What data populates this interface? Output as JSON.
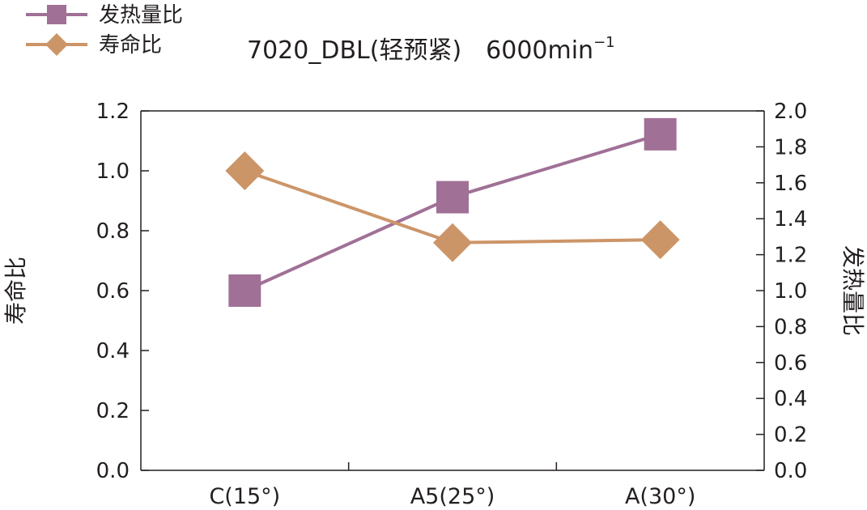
{
  "chart_data": {
    "type": "line",
    "title": "7020_DBL(轻预紧)　6000min",
    "title_superscript": "−1",
    "categories": [
      "C(15°)",
      "A5(25°)",
      "A(30°)"
    ],
    "y_left": {
      "label": "寿命比",
      "ylim": [
        0.0,
        1.2
      ],
      "ticks": [
        "0.0",
        "0.2",
        "0.4",
        "0.6",
        "0.8",
        "1.0",
        "1.2"
      ]
    },
    "y_right": {
      "label": "发热量比",
      "ylim": [
        0.0,
        2.0
      ],
      "ticks": [
        "0.0",
        "0.2",
        "0.4",
        "0.6",
        "0.8",
        "1.0",
        "1.2",
        "1.4",
        "1.6",
        "1.8",
        "2.0"
      ]
    },
    "series": [
      {
        "name": "发热量比",
        "axis": "right",
        "marker": "square",
        "color": "#a07096",
        "values": [
          1.0,
          1.52,
          1.87
        ]
      },
      {
        "name": "寿命比",
        "axis": "left",
        "marker": "diamond",
        "color": "#cc9568",
        "values": [
          1.0,
          0.76,
          0.77
        ]
      }
    ],
    "legend_position": "top-left",
    "grid": false
  }
}
